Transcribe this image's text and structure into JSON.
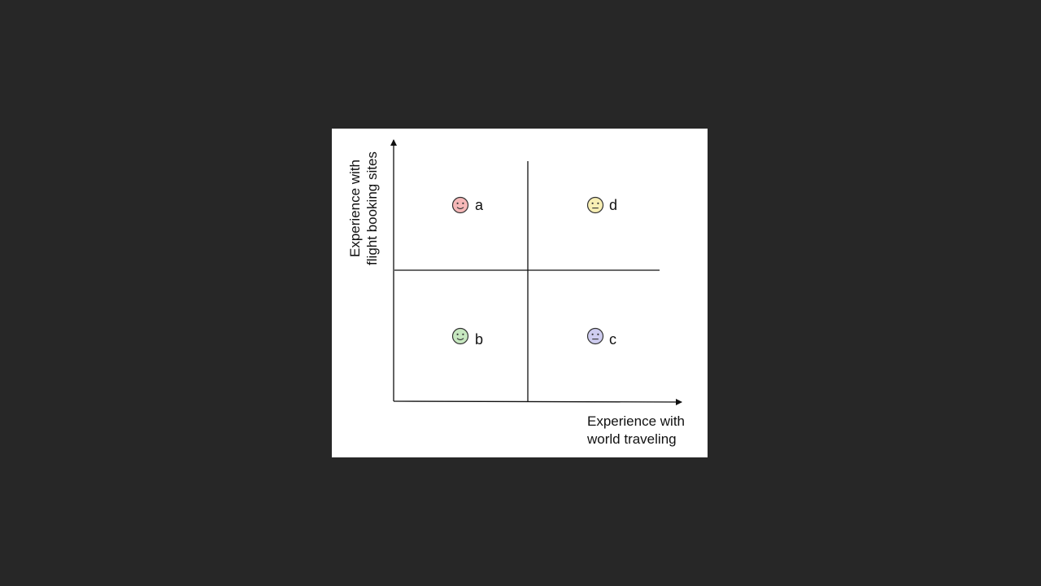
{
  "diagram": {
    "x_axis_label": [
      "Experience with",
      "world traveling"
    ],
    "y_axis_label": [
      "Experience with",
      "flight booking sites"
    ],
    "personas": [
      {
        "label": "a",
        "quadrant": "top-left",
        "face_color": "#f6b8b8",
        "mouth": "smile"
      },
      {
        "label": "d",
        "quadrant": "top-right",
        "face_color": "#f8efb4",
        "mouth": "flat"
      },
      {
        "label": "b",
        "quadrant": "bottom-left",
        "face_color": "#c7e8c0",
        "mouth": "smile"
      },
      {
        "label": "c",
        "quadrant": "bottom-right",
        "face_color": "#cfcdf0",
        "mouth": "flat"
      }
    ],
    "line_color": "#111111"
  }
}
